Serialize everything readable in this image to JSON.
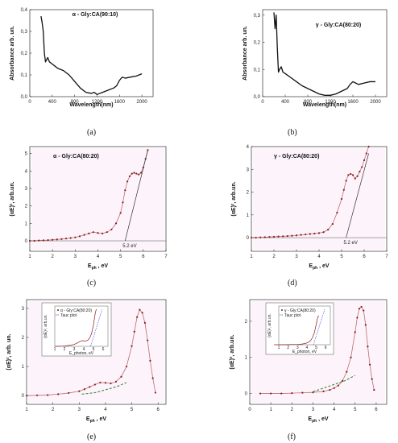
{
  "figure": {
    "captions": [
      "(a)",
      "(b)",
      "(c)",
      "(d)",
      "(e)",
      "(f)"
    ]
  },
  "chart_data": [
    {
      "id": "a",
      "type": "line",
      "title": "α - Gly:CA(90:10)",
      "xlabel": "Wavelength(nm)",
      "ylabel": "Absorbance arb. un.",
      "xlim": [
        0,
        2200
      ],
      "ylim": [
        0,
        0.4
      ],
      "xticks": [
        0,
        400,
        800,
        1200,
        1600,
        2000
      ],
      "yticks": [
        0.0,
        0.1,
        0.2,
        0.3,
        0.4
      ],
      "yticklabels": [
        "0,0",
        "0,1",
        "0,2",
        "0,3",
        "0,4"
      ],
      "series": [
        {
          "x": [
            200,
            220,
            240,
            260,
            280,
            300,
            320,
            350,
            400,
            450,
            500,
            600,
            700,
            800,
            900,
            1000,
            1100,
            1150,
            1200,
            1250,
            1300,
            1400,
            1500,
            1550,
            1600,
            1650,
            1700,
            1800,
            1900,
            2000
          ],
          "y": [
            0.37,
            0.34,
            0.3,
            0.2,
            0.16,
            0.17,
            0.18,
            0.16,
            0.15,
            0.14,
            0.13,
            0.12,
            0.1,
            0.07,
            0.04,
            0.02,
            0.015,
            0.02,
            0.01,
            0.015,
            0.02,
            0.03,
            0.04,
            0.05,
            0.075,
            0.09,
            0.085,
            0.09,
            0.095,
            0.105
          ],
          "color": "#111111"
        }
      ]
    },
    {
      "id": "b",
      "type": "line",
      "title": "γ - Gly:CA(80:20)",
      "xlabel": "Wavelength(nm)",
      "ylabel": "Absorbance arb. un.",
      "xlim": [
        0,
        2200
      ],
      "ylim": [
        0,
        0.32
      ],
      "xticks": [
        0,
        400,
        800,
        1200,
        1600,
        2000
      ],
      "yticks": [
        0.0,
        0.1,
        0.2,
        0.3
      ],
      "yticklabels": [
        "0,0",
        "0,1",
        "0,2",
        "0,3"
      ],
      "series": [
        {
          "x": [
            200,
            220,
            240,
            260,
            280,
            300,
            330,
            360,
            400,
            500,
            600,
            700,
            800,
            900,
            1000,
            1100,
            1200,
            1300,
            1400,
            1500,
            1550,
            1600,
            1650,
            1700,
            1800,
            1900,
            2000
          ],
          "y": [
            0.31,
            0.25,
            0.3,
            0.18,
            0.09,
            0.1,
            0.11,
            0.09,
            0.085,
            0.07,
            0.055,
            0.04,
            0.03,
            0.02,
            0.01,
            0.005,
            0.005,
            0.01,
            0.02,
            0.03,
            0.045,
            0.055,
            0.05,
            0.045,
            0.05,
            0.055,
            0.055
          ],
          "color": "#111111"
        }
      ]
    },
    {
      "id": "c",
      "type": "scatter",
      "title": "α - Gly:CA(80:20)",
      "xlabel": "E_ph , eV",
      "ylabel": "(αE)², arb.un.",
      "xlim": [
        1,
        7
      ],
      "ylim": [
        -0.6,
        5.4
      ],
      "xticks": [
        1,
        2,
        3,
        4,
        5,
        6,
        7
      ],
      "yticks": [
        0,
        1,
        2,
        3,
        4,
        5
      ],
      "annotation": "5.2 eV",
      "series": [
        {
          "x": [
            1.0,
            1.2,
            1.4,
            1.6,
            1.8,
            2.0,
            2.2,
            2.4,
            2.6,
            2.8,
            3.0,
            3.2,
            3.4,
            3.6,
            3.8,
            4.0,
            4.2,
            4.4,
            4.6,
            4.8,
            5.0,
            5.1,
            5.2,
            5.3,
            5.4,
            5.5,
            5.6,
            5.7,
            5.8,
            5.9,
            6.0,
            6.1,
            6.2
          ],
          "y": [
            0.0,
            0.0,
            0.02,
            0.03,
            0.04,
            0.06,
            0.08,
            0.1,
            0.13,
            0.16,
            0.2,
            0.26,
            0.34,
            0.42,
            0.5,
            0.45,
            0.42,
            0.5,
            0.65,
            1.0,
            1.6,
            2.2,
            2.9,
            3.4,
            3.7,
            3.85,
            3.9,
            3.85,
            3.8,
            3.9,
            4.2,
            4.7,
            5.2
          ],
          "color": "#8b1a1a"
        }
      ],
      "tangent": {
        "x": [
          5.2,
          6.2
        ],
        "y": [
          0.0,
          5.2
        ]
      }
    },
    {
      "id": "d",
      "type": "scatter",
      "title": "γ - Gly:CA(80:20)",
      "xlabel": "E_ph , eV",
      "ylabel": "(αE)², arb.un.",
      "xlim": [
        1,
        7
      ],
      "ylim": [
        -0.6,
        4.0
      ],
      "xticks": [
        1,
        2,
        3,
        4,
        5,
        6,
        7
      ],
      "yticks": [
        0,
        1,
        2,
        3,
        4
      ],
      "annotation": "5.2 eV",
      "series": [
        {
          "x": [
            1.0,
            1.2,
            1.4,
            1.6,
            1.8,
            2.0,
            2.2,
            2.4,
            2.6,
            2.8,
            3.0,
            3.2,
            3.4,
            3.6,
            3.8,
            4.0,
            4.2,
            4.4,
            4.6,
            4.8,
            5.0,
            5.1,
            5.2,
            5.3,
            5.4,
            5.5,
            5.6,
            5.7,
            5.8,
            5.9,
            6.0,
            6.1,
            6.2
          ],
          "y": [
            0.0,
            0.0,
            0.01,
            0.02,
            0.03,
            0.04,
            0.05,
            0.06,
            0.07,
            0.08,
            0.1,
            0.12,
            0.14,
            0.16,
            0.18,
            0.2,
            0.24,
            0.35,
            0.6,
            1.1,
            1.7,
            2.1,
            2.5,
            2.75,
            2.8,
            2.75,
            2.6,
            2.7,
            2.9,
            3.1,
            3.4,
            3.7,
            4.0
          ],
          "color": "#8b1a1a"
        }
      ],
      "tangent": {
        "x": [
          5.2,
          6.2
        ],
        "y": [
          0.0,
          3.7
        ]
      }
    },
    {
      "id": "e",
      "type": "scatter",
      "xlabel": "E_ph , eV",
      "ylabel": "(αE)², arb. un.",
      "xlim": [
        1,
        6.3
      ],
      "ylim": [
        -0.3,
        3.3
      ],
      "xticks": [
        1,
        2,
        3,
        4,
        5,
        6
      ],
      "yticks": [
        0,
        1,
        2,
        3
      ],
      "series": [
        {
          "name": "α - Gly:CA(80:20)",
          "color": "#8b1a1a",
          "x": [
            1.0,
            1.4,
            1.8,
            2.2,
            2.6,
            3.0,
            3.2,
            3.4,
            3.6,
            3.8,
            4.0,
            4.2,
            4.4,
            4.6,
            4.8,
            5.0,
            5.1,
            5.2,
            5.3,
            5.4,
            5.5,
            5.6,
            5.7,
            5.8,
            5.9
          ],
          "y": [
            0.0,
            0.01,
            0.02,
            0.05,
            0.09,
            0.15,
            0.22,
            0.3,
            0.38,
            0.45,
            0.44,
            0.42,
            0.48,
            0.65,
            1.0,
            1.7,
            2.2,
            2.7,
            2.95,
            2.85,
            2.5,
            1.9,
            1.2,
            0.6,
            0.1
          ]
        },
        {
          "name": "Tauc plot",
          "color": "#2e7d32",
          "x": [
            3.1,
            3.6,
            4.0,
            4.4,
            4.8
          ],
          "y": [
            0.05,
            0.1,
            0.2,
            0.3,
            0.45
          ]
        }
      ]
    },
    {
      "id": "f",
      "type": "scatter",
      "xlabel": "E_ph , eV",
      "ylabel": "(αE)², arb.un.",
      "xlim": [
        0,
        6.5
      ],
      "ylim": [
        -0.3,
        2.6
      ],
      "xticks": [
        0,
        1,
        2,
        3,
        4,
        5,
        6
      ],
      "yticks": [
        0,
        1,
        2
      ],
      "series": [
        {
          "name": "γ - Gly:CA(80:20)",
          "color": "#8b1a1a",
          "x": [
            0.5,
            1.0,
            1.5,
            2.0,
            2.5,
            3.0,
            3.5,
            3.8,
            4.0,
            4.2,
            4.4,
            4.6,
            4.8,
            5.0,
            5.1,
            5.2,
            5.3,
            5.4,
            5.5,
            5.6,
            5.7,
            5.8,
            5.9
          ],
          "y": [
            0.0,
            0.0,
            0.0,
            0.01,
            0.02,
            0.03,
            0.06,
            0.1,
            0.15,
            0.22,
            0.35,
            0.6,
            1.0,
            1.7,
            2.1,
            2.35,
            2.4,
            2.3,
            1.9,
            1.3,
            0.8,
            0.4,
            0.1
          ]
        },
        {
          "name": "Tauc plot",
          "color": "#2e7d32",
          "x": [
            3.0,
            3.5,
            4.0,
            4.5,
            5.0
          ],
          "y": [
            0.05,
            0.15,
            0.25,
            0.35,
            0.5
          ]
        }
      ]
    }
  ],
  "insets": [
    {
      "parent": "e",
      "legend": [
        "α - Gly:CA(80:20)",
        "Tauc plot"
      ],
      "xlabel": "E_photon, eV",
      "ylabel": "(αE)², arb.un.",
      "xticks": [
        1,
        2,
        3,
        4,
        5,
        6
      ],
      "yticks": [
        0,
        1,
        2,
        3,
        4
      ]
    },
    {
      "parent": "f",
      "legend": [
        "γ - Gly:CA(80:20)",
        "Tauc plot"
      ],
      "xlabel": "E_photon, eV",
      "ylabel": "(αE)², arb.un.",
      "xticks": [
        1,
        2,
        3,
        4,
        5,
        6
      ],
      "yticks": [
        0,
        1,
        2,
        3,
        4,
        5,
        6
      ]
    }
  ]
}
